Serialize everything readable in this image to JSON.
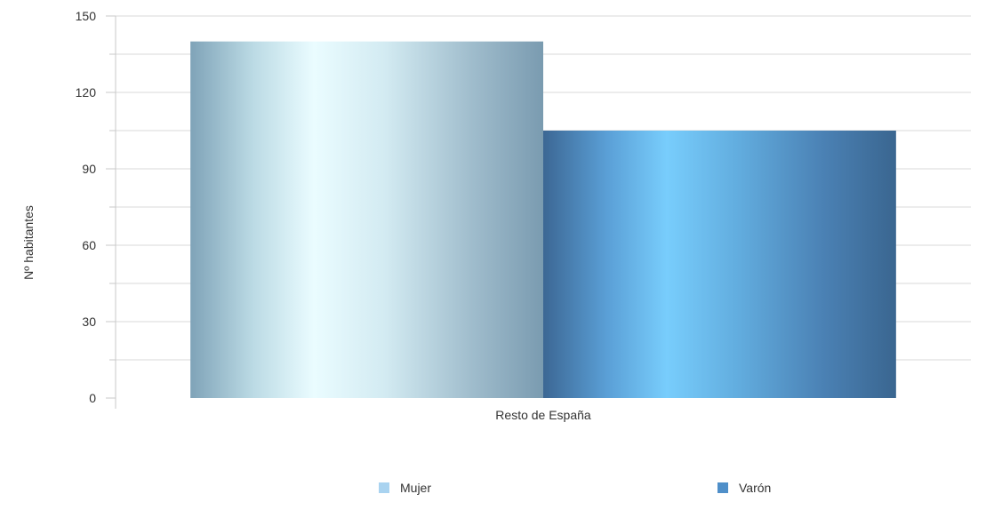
{
  "chart_data": {
    "type": "bar",
    "categories": [
      "Resto de España"
    ],
    "series": [
      {
        "name": "Mujer",
        "values": [
          140
        ],
        "color": "#a9d3f0"
      },
      {
        "name": "Varón",
        "values": [
          105
        ],
        "color": "#4f8fc9"
      }
    ],
    "title": "",
    "xlabel": "",
    "ylabel": "Nº habitantes",
    "ylim": [
      0,
      150
    ],
    "yticks": [
      0,
      30,
      60,
      90,
      120,
      150
    ],
    "grid": true,
    "legend_position": "bottom"
  }
}
